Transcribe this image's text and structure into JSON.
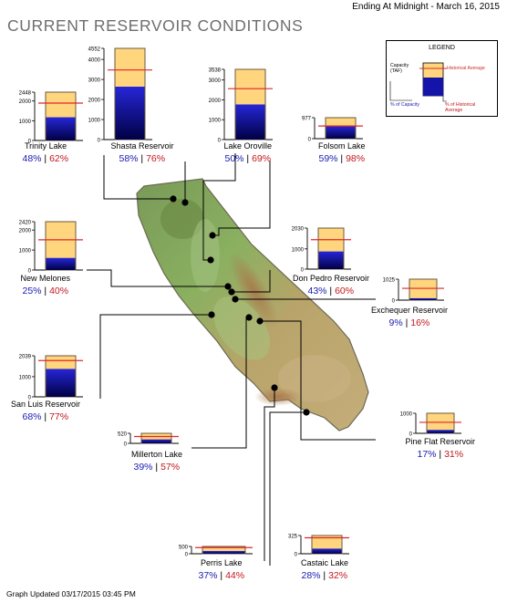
{
  "header": {
    "title": "CURRENT RESERVOIR CONDITIONS",
    "ending": "Ending At Midnight - March 16, 2015"
  },
  "footer": {
    "updated": "Graph Updated 03/17/2015 03:45 PM"
  },
  "legend": {
    "title": "LEGEND",
    "capacity_label": "Capacity (TAF)",
    "historical_label": "Historical Average",
    "pct_capacity_label": "% of Capacity",
    "pct_historical_label": "% of Historical Average"
  },
  "colors": {
    "capacity_fill": "#ffd57e",
    "storage_top": "#2626d8",
    "storage_bottom": "#000044",
    "historical_line": "#e0262a",
    "pct_capacity_text": "#1a1ab0",
    "pct_historical_text": "#c4161c"
  },
  "chart_data": {
    "type": "bar",
    "unit": "TAF",
    "reservoirs": [
      {
        "name": "Trinity Lake",
        "ticks": [
          "2448",
          "2000",
          "1000",
          "0"
        ],
        "capacity": 2448,
        "storage_pct": 48,
        "hist_pct": 62,
        "pct_capacity_text": "48%",
        "pct_historical_text": "62%"
      },
      {
        "name": "Shasta Reservoir",
        "ticks": [
          "4552",
          "4000",
          "3000",
          "2000",
          "1000",
          "0"
        ],
        "capacity": 4552,
        "storage_pct": 58,
        "hist_pct": 76,
        "pct_capacity_text": "58%",
        "pct_historical_text": "76%"
      },
      {
        "name": "Lake Oroville",
        "ticks": [
          "3538",
          "3000",
          "2000",
          "1000",
          "0"
        ],
        "capacity": 3538,
        "storage_pct": 50,
        "hist_pct": 69,
        "pct_capacity_text": "50%",
        "pct_historical_text": "69%"
      },
      {
        "name": "Folsom Lake",
        "ticks": [
          "977",
          "0"
        ],
        "capacity": 977,
        "storage_pct": 59,
        "hist_pct": 98,
        "pct_capacity_text": "59%",
        "pct_historical_text": "98%"
      },
      {
        "name": "New Melones",
        "ticks": [
          "2420",
          "2000",
          "1000",
          "0"
        ],
        "capacity": 2420,
        "storage_pct": 25,
        "hist_pct": 40,
        "pct_capacity_text": "25%",
        "pct_historical_text": "40%"
      },
      {
        "name": "Don Pedro Reservoir",
        "ticks": [
          "2030",
          "1000",
          "0"
        ],
        "capacity": 2030,
        "storage_pct": 43,
        "hist_pct": 60,
        "pct_capacity_text": "43%",
        "pct_historical_text": "60%"
      },
      {
        "name": "Exchequer Reservoir",
        "ticks": [
          "1025",
          "0"
        ],
        "capacity": 1025,
        "storage_pct": 9,
        "hist_pct": 16,
        "pct_capacity_text": "9%",
        "pct_historical_text": "16%"
      },
      {
        "name": "San Luis Reservoir",
        "ticks": [
          "2039",
          "1000",
          "0"
        ],
        "capacity": 2039,
        "storage_pct": 68,
        "hist_pct": 77,
        "pct_capacity_text": "68%",
        "pct_historical_text": "77%"
      },
      {
        "name": "Millerton Lake",
        "ticks": [
          "520",
          "0"
        ],
        "capacity": 520,
        "storage_pct": 39,
        "hist_pct": 57,
        "pct_capacity_text": "39%",
        "pct_historical_text": "57%"
      },
      {
        "name": "Pine Flat Reservoir",
        "ticks": [
          "1000",
          "0"
        ],
        "capacity": 1000,
        "storage_pct": 17,
        "hist_pct": 31,
        "pct_capacity_text": "17%",
        "pct_historical_text": "31%"
      },
      {
        "name": "Perris Lake",
        "ticks": [
          "500",
          "0"
        ],
        "capacity": 500,
        "storage_pct": 37,
        "hist_pct": 44,
        "pct_capacity_text": "37%",
        "pct_historical_text": "44%"
      },
      {
        "name": "Castaic Lake",
        "ticks": [
          "325",
          "0"
        ],
        "capacity": 325,
        "storage_pct": 28,
        "hist_pct": 32,
        "pct_capacity_text": "28%",
        "pct_historical_text": "32%"
      }
    ]
  }
}
